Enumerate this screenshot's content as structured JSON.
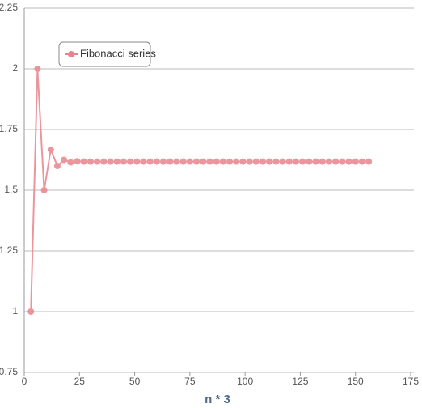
{
  "chart_data": {
    "type": "line",
    "x_label": "n * 3",
    "x": [
      3,
      6,
      9,
      12,
      15,
      18,
      21,
      24,
      27,
      30,
      33,
      36,
      39,
      42,
      45,
      48,
      51,
      54,
      57,
      60,
      63,
      66,
      69,
      72,
      75,
      78,
      81,
      84,
      87,
      90,
      93,
      96,
      99,
      102,
      105,
      108,
      111,
      114,
      117,
      120,
      123,
      126,
      129,
      132,
      135,
      138,
      141,
      144,
      147,
      150,
      153,
      156
    ],
    "series": [
      {
        "name": "Fibonacci series",
        "color": "#e8848c",
        "values": [
          1,
          2,
          1.5,
          1.667,
          1.6,
          1.625,
          1.615,
          1.619,
          1.618,
          1.618,
          1.618,
          1.618,
          1.618,
          1.618,
          1.618,
          1.618,
          1.618,
          1.618,
          1.618,
          1.618,
          1.618,
          1.618,
          1.618,
          1.618,
          1.618,
          1.618,
          1.618,
          1.618,
          1.618,
          1.618,
          1.618,
          1.618,
          1.618,
          1.618,
          1.618,
          1.618,
          1.618,
          1.618,
          1.618,
          1.618,
          1.618,
          1.618,
          1.618,
          1.618,
          1.618,
          1.618,
          1.618,
          1.618,
          1.618,
          1.618,
          1.618,
          1.618
        ]
      }
    ],
    "xlim": [
      0,
      175
    ],
    "xticks": [
      0,
      25,
      50,
      75,
      100,
      125,
      150,
      175
    ],
    "ylim": [
      0.75,
      2.25
    ],
    "yticks": [
      0.75,
      1,
      1.25,
      1.5,
      1.75,
      2,
      2.25
    ],
    "grid": true,
    "legend": "top-left"
  }
}
